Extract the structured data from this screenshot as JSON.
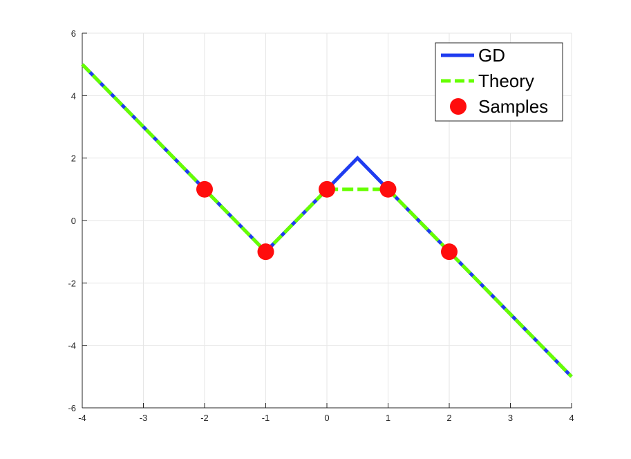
{
  "chart_data": {
    "type": "line",
    "title": "",
    "xlabel": "",
    "ylabel": "",
    "xlim": [
      -4,
      4
    ],
    "ylim": [
      -6,
      6
    ],
    "grid": true,
    "legend_position": "top-right",
    "x_ticks": [
      -4,
      -3,
      -2,
      -1,
      0,
      1,
      2,
      3,
      4
    ],
    "y_ticks": [
      -6,
      -4,
      -2,
      0,
      2,
      4,
      6
    ],
    "series": [
      {
        "name": "GD",
        "style": "solid",
        "color": "#1f3cf0",
        "x": [
          -4,
          -1,
          0,
          0.5,
          1,
          4
        ],
        "y": [
          5,
          -1,
          1,
          2,
          1,
          -5
        ]
      },
      {
        "name": "Theory",
        "style": "dashed",
        "color": "#66ff00",
        "x": [
          -4,
          -1,
          0,
          1,
          4
        ],
        "y": [
          5,
          -1,
          1,
          1,
          -5
        ]
      },
      {
        "name": "Samples",
        "style": "markers",
        "color": "#ff0d0d",
        "x": [
          -2,
          -1,
          0,
          1,
          2
        ],
        "y": [
          1,
          -1,
          1,
          1,
          -1
        ]
      }
    ]
  }
}
